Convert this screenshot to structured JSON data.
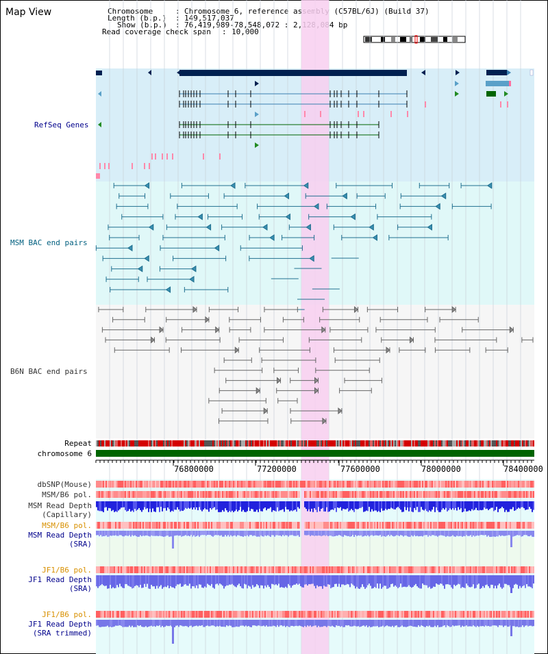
{
  "view_title": "Map View",
  "info": {
    "chromosome_key": "Chromosome",
    "chromosome_val": "Chromosome 6, reference assembly (C57BL/6J) (Build 37)",
    "length_key": "Length (b.p.)",
    "length_val": "149,517,037",
    "show_key": "Show (b.p.)",
    "show_val": "76,419,989-78,548,072 : 2,128,084 bp",
    "span_key": "Read coverage check span",
    "span_val": "10,000"
  },
  "tracks": {
    "refseq": "RefSeq Genes",
    "msm_bac": "MSM BAC end pairs",
    "b6n_bac": "B6N BAC end pairs",
    "repeat": "Repeat",
    "chromosome": "chromosome 6",
    "dbsnp": "dbSNP(Mouse)",
    "msm_b6_pol_1": "MSM/B6 pol.",
    "msm_depth_cap_1": "MSM Read Depth",
    "msm_depth_cap_2": "(Capillary)",
    "msm_b6_pol_2": "MSM/B6 pol.",
    "msm_depth_sra_1": "MSM Read Depth",
    "msm_depth_sra_2": "(SRA)",
    "jf1_b6_pol_1": "JF1/B6 pol.",
    "jf1_depth_sra_1": "JF1 Read Depth",
    "jf1_depth_sra_2": "(SRA)",
    "jf1_b6_pol_2": "JF1/B6 pol.",
    "jf1_depth_trim_1": "JF1 Read Depth",
    "jf1_depth_trim_2": "(SRA trimmed)"
  },
  "axis_ticks": [
    "76800000",
    "77200000",
    "77600000",
    "78000000",
    "78400000"
  ],
  "colors": {
    "refseq_bg": "#d8eef8",
    "msm_bg": "#e0f8f8",
    "b6n_bg": "#f4f4f4",
    "highlight": "#f8d8f0",
    "chromosome_bar": "#006400",
    "label_blue": "#00008b",
    "label_teal": "#005f7f",
    "label_orange": "#d89000",
    "depth_blue": "#3333dd",
    "depth_light": "#7777ee"
  }
}
